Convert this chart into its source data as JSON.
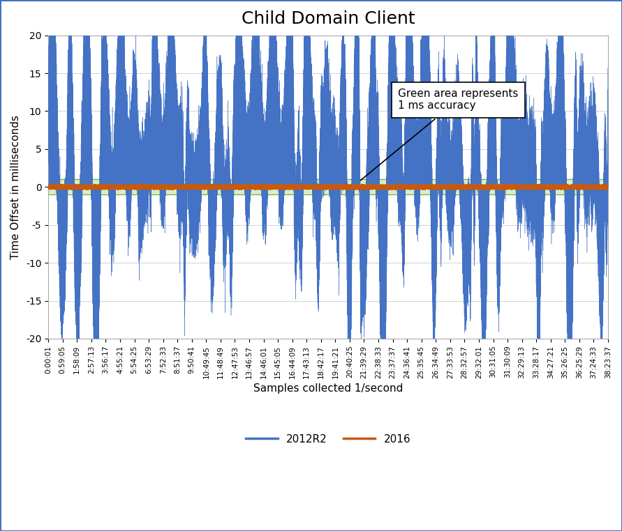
{
  "title": "Child Domain Client",
  "xlabel": "Samples collected 1/second",
  "ylabel": "Time Offset in milliseconds",
  "ylim": [
    -20,
    20
  ],
  "yticks": [
    -20,
    -15,
    -10,
    -5,
    0,
    5,
    10,
    15,
    20
  ],
  "blue_color": "#4472C4",
  "orange_color": "#C55A11",
  "green_fill_color": "#92D050",
  "green_fill_alpha": 0.35,
  "green_line_color": "#70AD47",
  "green_band": 1.0,
  "annotation_text": "Green area represents\n1 ms accuracy",
  "legend_labels": [
    "2012R2",
    "2016"
  ],
  "background_color": "#FFFFFF",
  "border_color": "#4472C4",
  "n_points": 138240,
  "seed": 42,
  "x_tick_labels": [
    "0:00:01",
    "0:59:05",
    "1:58:09",
    "2:57:13",
    "3:56:17",
    "4:55:21",
    "5:54:25",
    "6:53:29",
    "7:52:33",
    "8:51:37",
    "9:50:41",
    "10:49:45",
    "11:48:49",
    "12:47:53",
    "13:46:57",
    "14:46:01",
    "15:45:05",
    "16:44:09",
    "17:43:13",
    "18:42:17",
    "19:41:21",
    "20:40:25",
    "21:39:29",
    "22:38:33",
    "23:37:37",
    "24:36:41",
    "25:35:45",
    "26:34:49",
    "27:33:53",
    "28:32:57",
    "29:32:01",
    "30:31:05",
    "31:30:09",
    "32:29:13",
    "33:28:17",
    "34:27:21",
    "35:26:25",
    "36:25:29",
    "37:24:33",
    "38:23:37"
  ],
  "n_ticks": 40,
  "figsize": [
    8.91,
    7.62
  ],
  "dpi": 100
}
